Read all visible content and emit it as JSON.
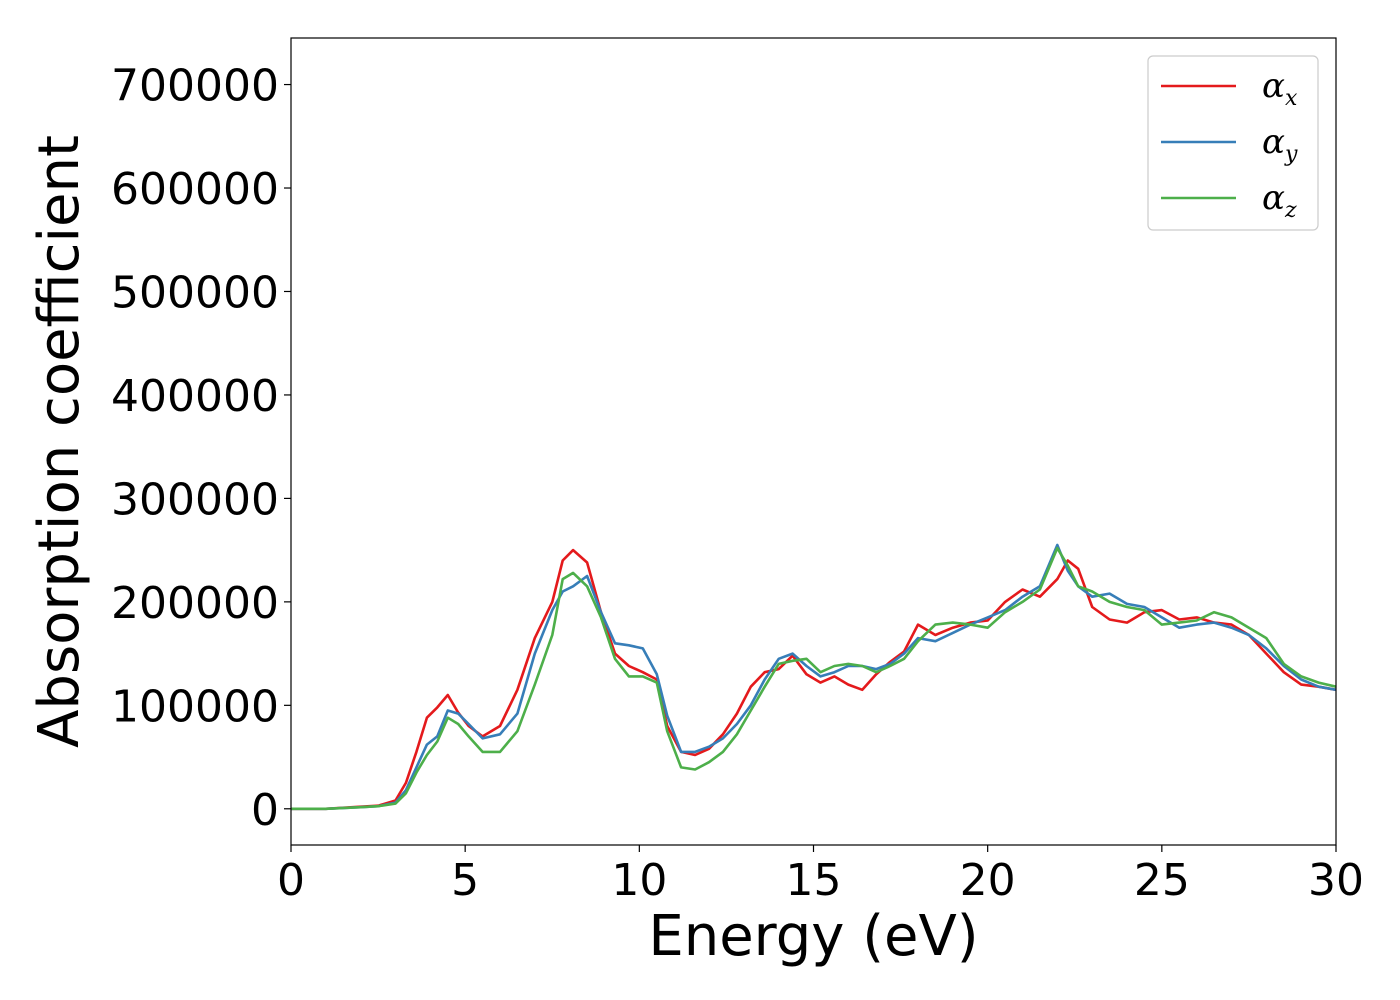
{
  "chart_data": {
    "type": "line",
    "title": "",
    "xlabel": "Energy (eV)",
    "ylabel": "Absorption coefficient",
    "xlim": [
      0,
      30
    ],
    "ylim": [
      -35000,
      745000
    ],
    "xticks": [
      0,
      5,
      10,
      15,
      20,
      25,
      30
    ],
    "yticks": [
      0,
      100000,
      200000,
      300000,
      400000,
      500000,
      600000,
      700000
    ],
    "grid": false,
    "legend_position": "top-right",
    "series": [
      {
        "name": "αx",
        "legend_base": "α",
        "legend_sub": "x",
        "color": "#e41a1c",
        "x": [
          0,
          1,
          2,
          2.5,
          3.0,
          3.3,
          3.6,
          3.9,
          4.2,
          4.5,
          4.8,
          5.1,
          5.5,
          6.0,
          6.5,
          7.0,
          7.5,
          7.8,
          8.1,
          8.5,
          8.9,
          9.3,
          9.7,
          10.1,
          10.5,
          10.8,
          11.2,
          11.6,
          12.0,
          12.4,
          12.8,
          13.2,
          13.6,
          14.0,
          14.4,
          14.8,
          15.2,
          15.6,
          16.0,
          16.4,
          16.8,
          17.2,
          17.6,
          18.0,
          18.5,
          19.0,
          19.5,
          20.0,
          20.5,
          21.0,
          21.5,
          22.0,
          22.3,
          22.6,
          23.0,
          23.5,
          24.0,
          24.5,
          25.0,
          25.5,
          26.0,
          26.5,
          27.0,
          27.5,
          28.0,
          28.5,
          29.0,
          29.5,
          30.0
        ],
        "y": [
          0,
          0,
          2000,
          3000,
          8000,
          25000,
          55000,
          88000,
          98000,
          110000,
          93000,
          80000,
          70000,
          80000,
          115000,
          165000,
          200000,
          240000,
          250000,
          238000,
          190000,
          150000,
          138000,
          132000,
          125000,
          80000,
          55000,
          52000,
          58000,
          72000,
          92000,
          118000,
          132000,
          135000,
          148000,
          130000,
          122000,
          128000,
          120000,
          115000,
          130000,
          142000,
          152000,
          178000,
          168000,
          175000,
          180000,
          182000,
          200000,
          212000,
          205000,
          222000,
          240000,
          232000,
          195000,
          183000,
          180000,
          190000,
          192000,
          183000,
          185000,
          180000,
          178000,
          168000,
          150000,
          132000,
          120000,
          118000,
          115000
        ]
      },
      {
        "name": "αy",
        "legend_base": "α",
        "legend_sub": "y",
        "color": "#377eb8",
        "x": [
          0,
          1,
          2,
          2.5,
          3.0,
          3.3,
          3.6,
          3.9,
          4.2,
          4.5,
          4.8,
          5.1,
          5.5,
          6.0,
          6.5,
          7.0,
          7.5,
          7.8,
          8.1,
          8.5,
          8.9,
          9.3,
          9.7,
          10.1,
          10.5,
          10.8,
          11.2,
          11.6,
          12.0,
          12.4,
          12.8,
          13.2,
          13.6,
          14.0,
          14.4,
          14.8,
          15.2,
          15.6,
          16.0,
          16.4,
          16.8,
          17.2,
          17.6,
          18.0,
          18.5,
          19.0,
          19.5,
          20.0,
          20.5,
          21.0,
          21.5,
          22.0,
          22.3,
          22.6,
          23.0,
          23.5,
          24.0,
          24.5,
          25.0,
          25.5,
          26.0,
          26.5,
          27.0,
          27.5,
          28.0,
          28.5,
          29.0,
          29.5,
          30.0
        ],
        "y": [
          0,
          0,
          1500,
          2500,
          6000,
          18000,
          40000,
          62000,
          70000,
          95000,
          92000,
          82000,
          68000,
          72000,
          92000,
          150000,
          192000,
          210000,
          215000,
          225000,
          190000,
          160000,
          158000,
          155000,
          130000,
          90000,
          55000,
          55000,
          60000,
          68000,
          82000,
          100000,
          125000,
          145000,
          150000,
          138000,
          128000,
          132000,
          138000,
          138000,
          135000,
          140000,
          150000,
          165000,
          162000,
          170000,
          178000,
          185000,
          192000,
          205000,
          215000,
          255000,
          230000,
          215000,
          205000,
          208000,
          198000,
          195000,
          185000,
          175000,
          178000,
          180000,
          175000,
          168000,
          155000,
          138000,
          125000,
          118000,
          115000
        ]
      },
      {
        "name": "αz",
        "legend_base": "α",
        "legend_sub": "z",
        "color": "#4daf4a",
        "x": [
          0,
          1,
          2,
          2.5,
          3.0,
          3.3,
          3.6,
          3.9,
          4.2,
          4.5,
          4.8,
          5.1,
          5.5,
          6.0,
          6.5,
          7.0,
          7.5,
          7.8,
          8.1,
          8.5,
          8.9,
          9.3,
          9.7,
          10.1,
          10.5,
          10.8,
          11.2,
          11.6,
          12.0,
          12.4,
          12.8,
          13.2,
          13.6,
          14.0,
          14.4,
          14.8,
          15.2,
          15.6,
          16.0,
          16.4,
          16.8,
          17.2,
          17.6,
          18.0,
          18.5,
          19.0,
          19.5,
          20.0,
          20.5,
          21.0,
          21.5,
          22.0,
          22.3,
          22.6,
          23.0,
          23.5,
          24.0,
          24.5,
          25.0,
          25.5,
          26.0,
          26.5,
          27.0,
          27.5,
          28.0,
          28.5,
          29.0,
          29.5,
          30.0
        ],
        "y": [
          0,
          0,
          1500,
          2500,
          5000,
          15000,
          35000,
          52000,
          65000,
          88000,
          82000,
          70000,
          55000,
          55000,
          75000,
          120000,
          168000,
          222000,
          228000,
          215000,
          185000,
          145000,
          128000,
          128000,
          122000,
          75000,
          40000,
          38000,
          45000,
          55000,
          72000,
          95000,
          118000,
          140000,
          143000,
          145000,
          132000,
          138000,
          140000,
          138000,
          132000,
          138000,
          145000,
          162000,
          178000,
          180000,
          178000,
          175000,
          190000,
          200000,
          212000,
          252000,
          235000,
          215000,
          210000,
          200000,
          195000,
          192000,
          178000,
          180000,
          182000,
          190000,
          185000,
          175000,
          165000,
          140000,
          128000,
          122000,
          118000
        ]
      }
    ]
  }
}
